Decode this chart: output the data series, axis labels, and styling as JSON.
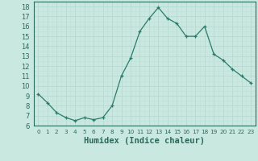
{
  "x": [
    0,
    1,
    2,
    3,
    4,
    5,
    6,
    7,
    8,
    9,
    10,
    11,
    12,
    13,
    14,
    15,
    16,
    17,
    18,
    19,
    20,
    21,
    22,
    23
  ],
  "y": [
    9.2,
    8.3,
    7.3,
    6.8,
    6.5,
    6.8,
    6.6,
    6.8,
    8.0,
    11.0,
    12.8,
    15.5,
    16.8,
    17.9,
    16.8,
    16.3,
    15.0,
    15.0,
    16.0,
    13.2,
    12.6,
    11.7,
    11.0,
    10.3
  ],
  "line_color": "#2a7c6a",
  "marker": "+",
  "bg_color": "#c8e8e0",
  "grid_major_color": "#b8d8d0",
  "grid_minor_color": "#c0e0d8",
  "xlabel": "Humidex (Indice chaleur)",
  "xlim": [
    -0.5,
    23.5
  ],
  "ylim": [
    6,
    18.5
  ],
  "yticks": [
    6,
    7,
    8,
    9,
    10,
    11,
    12,
    13,
    14,
    15,
    16,
    17,
    18
  ],
  "xticks": [
    0,
    1,
    2,
    3,
    4,
    5,
    6,
    7,
    8,
    9,
    10,
    11,
    12,
    13,
    14,
    15,
    16,
    17,
    18,
    19,
    20,
    21,
    22,
    23
  ],
  "tick_color": "#2a6a5a",
  "xlabel_fontsize": 7.5,
  "tick_fontsize_x": 5.2,
  "tick_fontsize_y": 6.0
}
